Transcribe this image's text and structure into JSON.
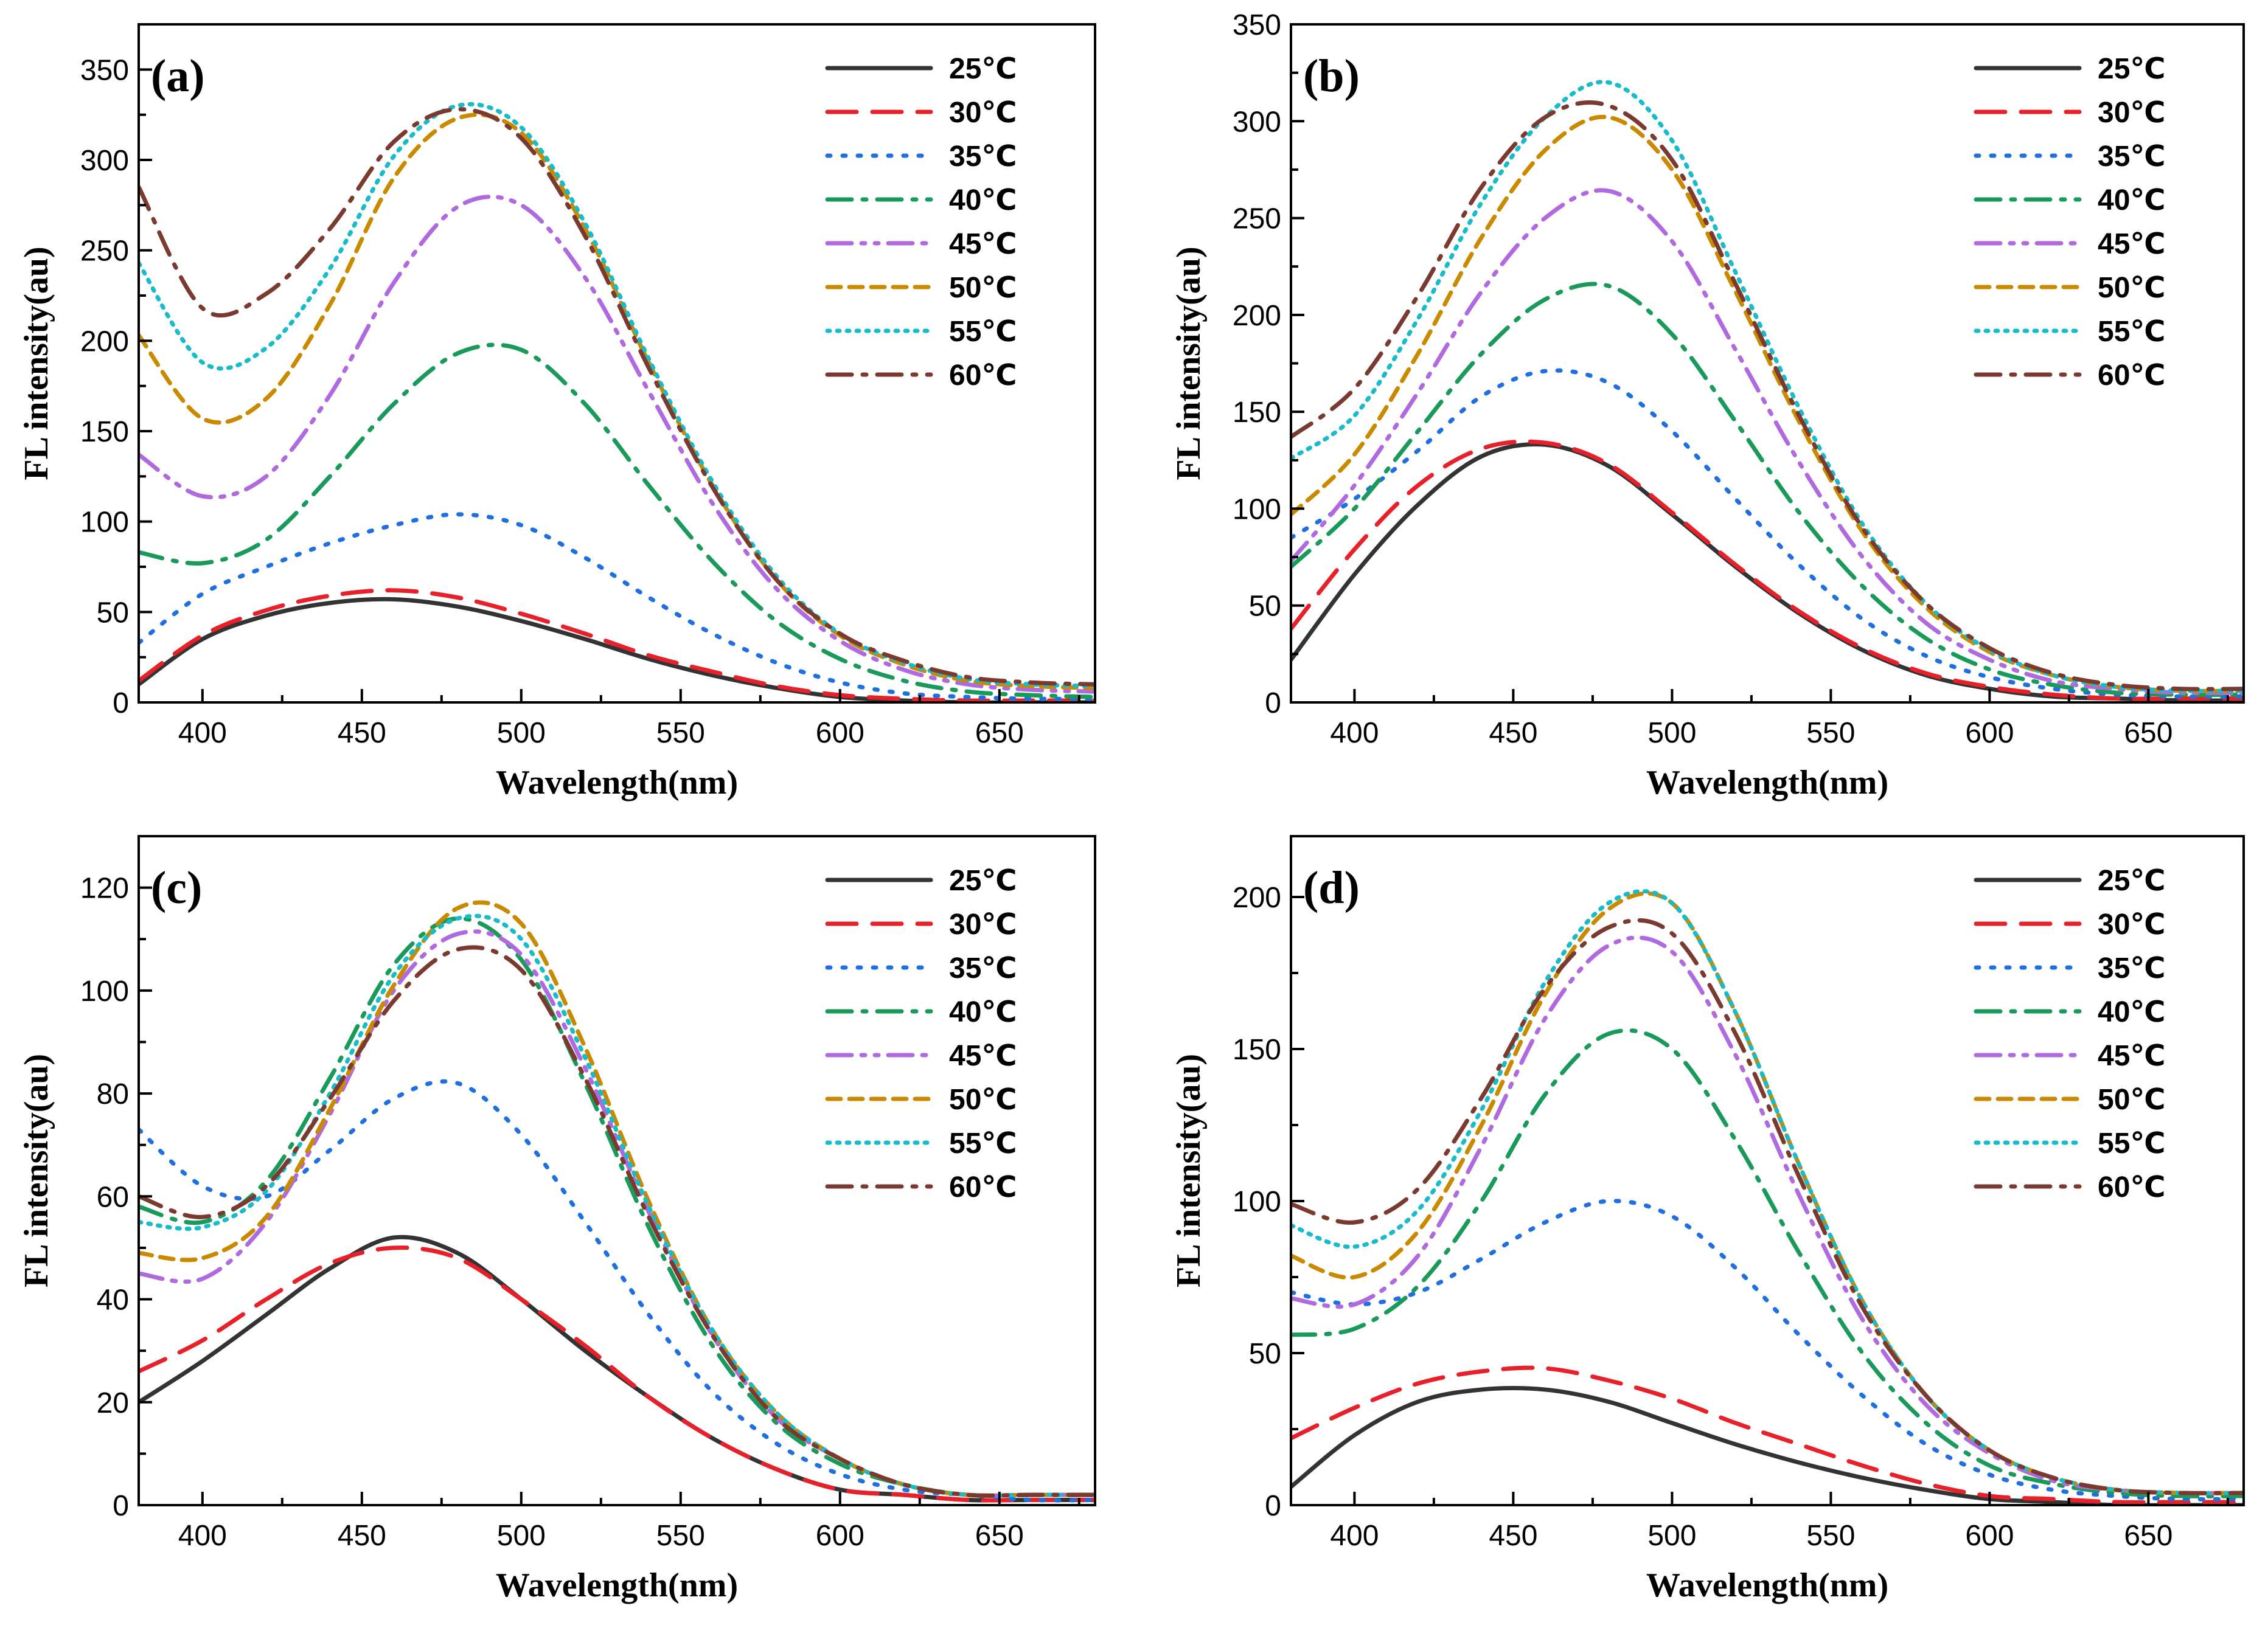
{
  "legend": [
    "25℃",
    "30℃",
    "35℃",
    "40℃",
    "45℃",
    "50℃",
    "55℃",
    "60℃"
  ],
  "series_style": [
    {
      "color": "#333333",
      "dash": "solid"
    },
    {
      "color": "#e8202a",
      "dash": "dash"
    },
    {
      "color": "#1f6fe0",
      "dash": "dot"
    },
    {
      "color": "#1a9a5a",
      "dash": "dashdot"
    },
    {
      "color": "#b06ae0",
      "dash": "dashdotdot"
    },
    {
      "color": "#c98a00",
      "dash": "shortdash"
    },
    {
      "color": "#18bcc8",
      "dash": "shortdot"
    },
    {
      "color": "#7a3a30",
      "dash": "dashdot"
    }
  ],
  "chart_data": [
    {
      "panel": "(a)",
      "type": "line",
      "xlabel": "Wavelength(nm)",
      "ylabel": "FL intensity(au)",
      "xlim": [
        380,
        680
      ],
      "ylim": [
        0,
        375
      ],
      "xticks": [
        400,
        450,
        500,
        550,
        600,
        650
      ],
      "yticks": [
        0,
        50,
        100,
        150,
        200,
        250,
        300,
        350
      ],
      "x": [
        380,
        400,
        420,
        440,
        460,
        480,
        500,
        520,
        540,
        560,
        580,
        600,
        620,
        640,
        660,
        680
      ],
      "series": [
        {
          "name": "25℃",
          "values": [
            10,
            35,
            48,
            55,
            57,
            53,
            45,
            35,
            24,
            15,
            8,
            3,
            1,
            0,
            0,
            0
          ]
        },
        {
          "name": "30℃",
          "values": [
            12,
            37,
            51,
            59,
            62,
            58,
            49,
            38,
            26,
            17,
            9,
            4,
            2,
            1,
            1,
            1
          ]
        },
        {
          "name": "35℃",
          "values": [
            33,
            60,
            75,
            88,
            98,
            104,
            98,
            80,
            58,
            38,
            22,
            11,
            5,
            3,
            2,
            2
          ]
        },
        {
          "name": "40℃",
          "values": [
            83,
            77,
            90,
            125,
            165,
            193,
            195,
            165,
            120,
            78,
            45,
            24,
            12,
            6,
            4,
            3
          ]
        },
        {
          "name": "45℃",
          "values": [
            137,
            114,
            125,
            170,
            232,
            274,
            275,
            235,
            172,
            110,
            63,
            34,
            18,
            10,
            7,
            6
          ]
        },
        {
          "name": "50℃",
          "values": [
            203,
            157,
            168,
            220,
            290,
            323,
            315,
            262,
            188,
            120,
            68,
            37,
            21,
            12,
            9,
            8
          ]
        },
        {
          "name": "55℃",
          "values": [
            243,
            188,
            196,
            240,
            302,
            330,
            318,
            265,
            190,
            122,
            70,
            38,
            22,
            13,
            10,
            9
          ]
        },
        {
          "name": "60℃",
          "values": [
            285,
            218,
            226,
            262,
            310,
            328,
            312,
            258,
            185,
            119,
            68,
            38,
            23,
            14,
            11,
            10
          ]
        }
      ]
    },
    {
      "panel": "(b)",
      "type": "line",
      "xlabel": "Wavelength(nm)",
      "ylabel": "FL intensity(au)",
      "xlim": [
        380,
        680
      ],
      "ylim": [
        0,
        350
      ],
      "xticks": [
        400,
        450,
        500,
        550,
        600,
        650
      ],
      "yticks": [
        0,
        50,
        100,
        150,
        200,
        250,
        300,
        350
      ],
      "x": [
        380,
        400,
        420,
        440,
        460,
        480,
        500,
        520,
        540,
        560,
        580,
        600,
        620,
        640,
        660,
        680
      ],
      "series": [
        {
          "name": "25℃",
          "values": [
            22,
            66,
            102,
            127,
            133,
            122,
            97,
            70,
            46,
            27,
            14,
            7,
            3,
            2,
            1,
            1
          ]
        },
        {
          "name": "30℃",
          "values": [
            38,
            79,
            112,
            131,
            134,
            123,
            98,
            71,
            47,
            28,
            15,
            8,
            4,
            2,
            2,
            2
          ]
        },
        {
          "name": "35℃",
          "values": [
            85,
            105,
            130,
            158,
            171,
            165,
            140,
            105,
            71,
            43,
            24,
            13,
            7,
            4,
            3,
            3
          ]
        },
        {
          "name": "40℃",
          "values": [
            70,
            100,
            140,
            180,
            208,
            215,
            190,
            145,
            98,
            60,
            33,
            17,
            9,
            5,
            4,
            4
          ]
        },
        {
          "name": "45℃",
          "values": [
            73,
            112,
            160,
            212,
            250,
            264,
            238,
            182,
            124,
            75,
            41,
            22,
            11,
            7,
            5,
            5
          ]
        },
        {
          "name": "50℃",
          "values": [
            97,
            128,
            180,
            240,
            285,
            302,
            275,
            212,
            145,
            88,
            49,
            26,
            14,
            8,
            6,
            6
          ]
        },
        {
          "name": "55℃",
          "values": [
            126,
            148,
            198,
            258,
            302,
            320,
            290,
            222,
            152,
            92,
            51,
            27,
            14,
            8,
            6,
            6
          ]
        },
        {
          "name": "60℃",
          "values": [
            137,
            162,
            210,
            266,
            302,
            308,
            280,
            216,
            148,
            90,
            51,
            28,
            15,
            9,
            7,
            7
          ]
        }
      ]
    },
    {
      "panel": "(c)",
      "type": "line",
      "xlabel": "Wavelength(nm)",
      "ylabel": "FL intensity(au)",
      "xlim": [
        380,
        680
      ],
      "ylim": [
        0,
        130
      ],
      "xticks": [
        400,
        450,
        500,
        550,
        600,
        650
      ],
      "yticks": [
        0,
        20,
        40,
        60,
        80,
        100,
        120
      ],
      "x": [
        380,
        400,
        420,
        440,
        460,
        480,
        500,
        520,
        540,
        560,
        580,
        600,
        620,
        640,
        660,
        680
      ],
      "series": [
        {
          "name": "25℃",
          "values": [
            20,
            28,
            37,
            46,
            52,
            49,
            40,
            30,
            21,
            13,
            7,
            3,
            2,
            1,
            1,
            1
          ]
        },
        {
          "name": "30℃",
          "values": [
            26,
            32,
            40,
            47,
            50,
            48,
            40,
            31,
            21,
            13,
            7,
            3,
            2,
            1,
            1,
            1
          ]
        },
        {
          "name": "35℃",
          "values": [
            73,
            62,
            60,
            69,
            79,
            82,
            72,
            55,
            37,
            22,
            12,
            6,
            3,
            2,
            1,
            1
          ]
        },
        {
          "name": "40℃",
          "values": [
            58,
            55,
            63,
            83,
            105,
            114,
            106,
            82,
            54,
            31,
            16,
            8,
            4,
            2,
            2,
            2
          ]
        },
        {
          "name": "45℃",
          "values": [
            45,
            44,
            55,
            76,
            100,
            111,
            107,
            85,
            57,
            33,
            17,
            9,
            4,
            2,
            2,
            2
          ]
        },
        {
          "name": "50℃",
          "values": [
            49,
            48,
            56,
            77,
            101,
            116,
            113,
            89,
            59,
            34,
            18,
            9,
            4,
            2,
            2,
            2
          ]
        },
        {
          "name": "55℃",
          "values": [
            55,
            54,
            61,
            80,
            103,
            114,
            110,
            87,
            58,
            34,
            18,
            9,
            4,
            2,
            2,
            2
          ]
        },
        {
          "name": "60℃",
          "values": [
            60,
            56,
            62,
            79,
            98,
            108,
            104,
            83,
            56,
            33,
            17,
            9,
            4,
            2,
            2,
            2
          ]
        }
      ]
    },
    {
      "panel": "(d)",
      "type": "line",
      "xlabel": "Wavelength(nm)",
      "ylabel": "FL intensity(au)",
      "xlim": [
        380,
        680
      ],
      "ylim": [
        0,
        220
      ],
      "xticks": [
        400,
        450,
        500,
        550,
        600,
        650
      ],
      "yticks": [
        0,
        50,
        100,
        150,
        200
      ],
      "x": [
        380,
        400,
        420,
        440,
        460,
        480,
        500,
        520,
        540,
        560,
        580,
        600,
        620,
        640,
        660,
        680
      ],
      "series": [
        {
          "name": "25℃",
          "values": [
            6,
            23,
            34,
            38,
            38,
            34,
            27,
            20,
            14,
            9,
            5,
            2,
            1,
            0,
            0,
            0
          ]
        },
        {
          "name": "30℃",
          "values": [
            22,
            32,
            40,
            44,
            45,
            41,
            35,
            27,
            20,
            13,
            7,
            3,
            2,
            1,
            1,
            1
          ]
        },
        {
          "name": "35℃",
          "values": [
            70,
            66,
            70,
            81,
            93,
            100,
            95,
            78,
            56,
            36,
            20,
            10,
            5,
            3,
            2,
            2
          ]
        },
        {
          "name": "40℃",
          "values": [
            56,
            58,
            72,
            100,
            135,
            155,
            150,
            120,
            83,
            50,
            27,
            13,
            7,
            4,
            3,
            3
          ]
        },
        {
          "name": "45℃",
          "values": [
            68,
            66,
            82,
            118,
            160,
            184,
            182,
            148,
            102,
            61,
            33,
            17,
            8,
            5,
            4,
            4
          ]
        },
        {
          "name": "50℃",
          "values": [
            82,
            75,
            90,
            125,
            168,
            196,
            198,
            162,
            112,
            67,
            36,
            18,
            9,
            5,
            4,
            4
          ]
        },
        {
          "name": "55℃",
          "values": [
            92,
            85,
            97,
            130,
            172,
            198,
            198,
            162,
            112,
            67,
            36,
            18,
            9,
            5,
            4,
            4
          ]
        },
        {
          "name": "60℃",
          "values": [
            99,
            93,
            104,
            134,
            170,
            190,
            188,
            155,
            108,
            65,
            36,
            18,
            9,
            5,
            4,
            4
          ]
        }
      ]
    }
  ]
}
